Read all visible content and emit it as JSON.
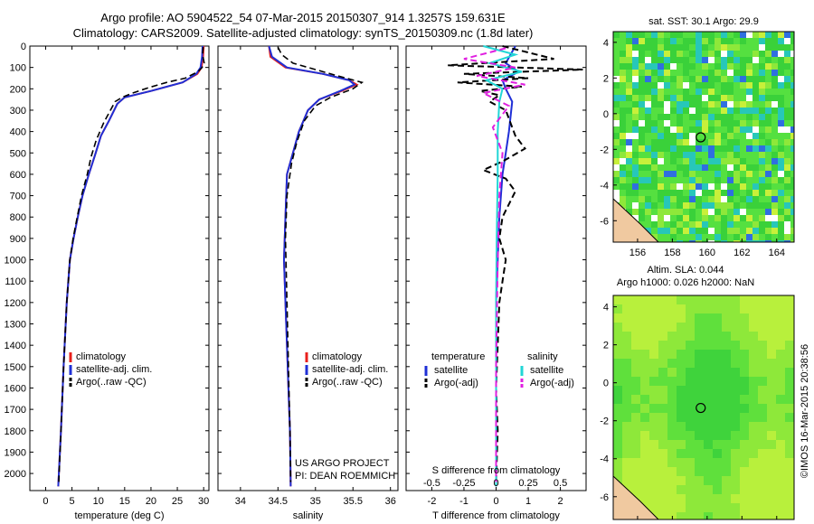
{
  "header": {
    "line1": "Argo profile: AO 5904522_54 07-Mar-2015 20150307_914 1.3257S 159.631E",
    "line2": "Climatology: CARS2009. Satellite-adjusted climatology: synTS_20150309.nc (1.8d later)"
  },
  "colors": {
    "climatology": "#e8201c",
    "satellite": "#1f2fd6",
    "argo": "#000000",
    "sat_sal": "#21d6d6",
    "argo_sal": "#e020e0"
  },
  "chart_data": [
    {
      "id": "temperature",
      "type": "line",
      "xlabel": "temperature (deg C)",
      "ylabel": "",
      "xlim": [
        -3,
        31
      ],
      "xticks": [
        0,
        5,
        10,
        15,
        20,
        25,
        30
      ],
      "ylim": [
        2080,
        0
      ],
      "yticks": [
        0,
        100,
        200,
        300,
        400,
        500,
        600,
        700,
        800,
        900,
        1000,
        1100,
        1200,
        1300,
        1400,
        1500,
        1600,
        1700,
        1800,
        1900,
        2000
      ],
      "legend": [
        "climatology",
        "satellite-adj. clim.",
        "Argo(..raw -QC)"
      ],
      "legend_position": "lower-center",
      "series": [
        {
          "name": "climatology",
          "x": [
            30.0,
            29.9,
            29.6,
            28.8,
            26.0,
            20.0,
            15.0,
            13.6,
            12.0,
            10.5,
            9.5,
            8.2,
            7.0,
            6.1,
            5.3,
            4.6,
            4.0,
            3.4,
            2.9,
            2.4
          ],
          "y": [
            0,
            50,
            100,
            130,
            170,
            210,
            240,
            270,
            350,
            420,
            500,
            600,
            700,
            800,
            900,
            1000,
            1200,
            1500,
            1800,
            2060
          ]
        },
        {
          "name": "satellite-adj. clim.",
          "x": [
            29.8,
            29.7,
            29.4,
            28.6,
            26.0,
            20.0,
            15.0,
            13.6,
            12.0,
            10.5,
            9.5,
            8.2,
            7.0,
            6.1,
            5.3,
            4.6,
            4.0,
            3.4,
            2.9,
            2.4
          ],
          "y": [
            0,
            50,
            100,
            130,
            170,
            210,
            240,
            270,
            350,
            420,
            500,
            600,
            700,
            800,
            900,
            1000,
            1200,
            1500,
            1800,
            2060
          ]
        },
        {
          "name": "Argo(..raw -QC)",
          "x": [
            29.9,
            29.8,
            30.1,
            29.7,
            28.9,
            26.5,
            23.0,
            19.5,
            16.5,
            14.5,
            13.2,
            12.3,
            11.0,
            9.6,
            8.6,
            7.9,
            6.8,
            6.0,
            5.2,
            4.6,
            4.0,
            3.4,
            2.9,
            2.5
          ],
          "y": [
            5,
            40,
            80,
            100,
            120,
            150,
            170,
            195,
            220,
            240,
            260,
            300,
            360,
            440,
            520,
            600,
            700,
            800,
            900,
            1000,
            1200,
            1500,
            1800,
            2040
          ]
        }
      ]
    },
    {
      "id": "salinity",
      "type": "line",
      "xlabel": "salinity",
      "ylabel": "",
      "xlim": [
        33.7,
        36.1
      ],
      "xticks": [
        34,
        34.5,
        35,
        35.5,
        36
      ],
      "ylim": [
        2080,
        0
      ],
      "yticks": [
        0,
        100,
        200,
        300,
        400,
        500,
        600,
        700,
        800,
        900,
        1000,
        1100,
        1200,
        1300,
        1400,
        1500,
        1600,
        1700,
        1800,
        1900,
        2000
      ],
      "legend": [
        "climatology",
        "satellite-adj. clim.",
        "Argo(..raw -QC)"
      ],
      "legend_position": "lower-center",
      "annotation": [
        "US ARGO PROJECT",
        "PI: DEAN ROEMMICH"
      ],
      "series": [
        {
          "name": "climatology",
          "x": [
            34.38,
            34.4,
            34.6,
            35.1,
            35.45,
            35.55,
            35.35,
            35.05,
            34.9,
            34.78,
            34.7,
            34.62,
            34.6,
            34.58,
            34.6,
            34.62,
            34.64,
            34.66,
            34.67
          ],
          "y": [
            0,
            50,
            100,
            130,
            160,
            180,
            210,
            250,
            300,
            400,
            500,
            600,
            800,
            1000,
            1200,
            1400,
            1600,
            1800,
            2060
          ]
        },
        {
          "name": "satellite-adj. clim.",
          "x": [
            34.38,
            34.42,
            34.62,
            35.1,
            35.45,
            35.52,
            35.33,
            35.05,
            34.9,
            34.78,
            34.7,
            34.62,
            34.6,
            34.58,
            34.6,
            34.62,
            34.64,
            34.66,
            34.67
          ],
          "y": [
            0,
            50,
            100,
            130,
            160,
            180,
            210,
            250,
            300,
            400,
            500,
            600,
            800,
            1000,
            1200,
            1400,
            1600,
            1800,
            2060
          ]
        },
        {
          "name": "Argo(..raw -QC)",
          "x": [
            34.5,
            34.55,
            34.7,
            35.0,
            35.3,
            35.62,
            35.5,
            35.2,
            35.0,
            34.85,
            34.75,
            34.68,
            34.62,
            34.6,
            34.62,
            34.64,
            34.66,
            34.67
          ],
          "y": [
            5,
            40,
            80,
            110,
            140,
            170,
            200,
            240,
            280,
            350,
            450,
            550,
            700,
            900,
            1200,
            1500,
            1800,
            2040
          ]
        }
      ]
    },
    {
      "id": "difference",
      "type": "line",
      "xlabel": "T difference from climatology",
      "top_label": "S difference from climatology",
      "xlim": [
        -2.8,
        2.8
      ],
      "xticks": [
        -2,
        -1,
        0,
        1,
        2
      ],
      "xticklabels": [
        "-2",
        "-1",
        "0",
        "1",
        "2"
      ],
      "top_xticks": [
        -0.5,
        -0.25,
        0,
        0.25,
        0.5
      ],
      "top_xtick_pos": [
        -2,
        -1,
        0,
        1,
        2
      ],
      "ylim": [
        2080,
        0
      ],
      "yticks": [
        0,
        100,
        200,
        300,
        400,
        500,
        600,
        700,
        800,
        900,
        1000,
        1100,
        1200,
        1300,
        1400,
        1500,
        1600,
        1700,
        1800,
        1900,
        2000
      ],
      "legend_titles": [
        "temperature",
        "salinity"
      ],
      "legend": [
        "satellite",
        "Argo(-adj)",
        "satellite",
        "Argo(-adj)"
      ],
      "series": [
        {
          "name": "satellite",
          "group": "temperature",
          "x": [
            0.6,
            0.3,
            0.7,
            0.2,
            0.3,
            0.5,
            0.4,
            0.3,
            0.2,
            0.1,
            0.05,
            0.0,
            0.0,
            0.0,
            0.0
          ],
          "y": [
            0,
            80,
            120,
            160,
            200,
            260,
            400,
            500,
            600,
            800,
            1000,
            1200,
            1500,
            1800,
            2060
          ]
        },
        {
          "name": "Argo(-adj)",
          "group": "temperature",
          "x": [
            0.2,
            1.8,
            -1.5,
            2.7,
            -1.0,
            1.0,
            -1.2,
            0.8,
            -0.5,
            0.1,
            -0.2,
            0.3,
            0.6,
            0.9,
            0.2,
            -0.4,
            0.3,
            0.6,
            0.2,
            0.1,
            0.3,
            0.2,
            0.1,
            0.05,
            0.0,
            0.05,
            0.0
          ],
          "y": [
            0,
            60,
            90,
            110,
            130,
            150,
            170,
            190,
            210,
            230,
            260,
            300,
            420,
            480,
            540,
            580,
            620,
            680,
            800,
            900,
            1000,
            1100,
            1200,
            1400,
            1600,
            1800,
            2040
          ]
        },
        {
          "name": "satellite",
          "group": "salinity",
          "x": [
            -0.4,
            0.6,
            -0.2,
            0.8,
            -0.3,
            0.2,
            0.1,
            0.05,
            0.05,
            0.02,
            0.0,
            0.0,
            0.0
          ],
          "y": [
            0,
            40,
            80,
            120,
            160,
            200,
            260,
            400,
            600,
            900,
            1200,
            1600,
            2060
          ]
        },
        {
          "name": "Argo(-adj)",
          "group": "salinity",
          "x": [
            0.3,
            -1.0,
            0.6,
            -0.6,
            0.9,
            -0.4,
            0.4,
            -0.1,
            0.2,
            0.1,
            0.05,
            0.0,
            0.0
          ],
          "y": [
            10,
            60,
            100,
            140,
            180,
            220,
            280,
            380,
            500,
            700,
            1000,
            1500,
            2040
          ]
        }
      ]
    },
    {
      "id": "sst-map",
      "type": "heatmap",
      "title": "sat. SST: 30.1  Argo: 29.9",
      "xticks": [
        156,
        158,
        160,
        162,
        164
      ],
      "yticks": [
        4,
        2,
        0,
        -2,
        -4,
        -6
      ],
      "xlim": [
        154.6,
        165.0
      ],
      "ylim": [
        -7.2,
        4.6
      ],
      "marker": {
        "lon": 159.631,
        "lat": -1.3257
      }
    },
    {
      "id": "sla-map",
      "type": "heatmap",
      "title": "Altim. SLA: 0.044",
      "subtitle": "Argo h1000: 0.026  h2000: NaN",
      "xticks": [
        156,
        158,
        160,
        162,
        164
      ],
      "yticks": [
        4,
        2,
        0,
        -2,
        -4,
        -6
      ],
      "xlim": [
        154.6,
        165.0
      ],
      "ylim": [
        -7.2,
        4.6
      ],
      "marker": {
        "lon": 159.631,
        "lat": -1.3257
      }
    }
  ],
  "footer": {
    "credit": "©IMOS 16-Mar-2015 20:38:56"
  }
}
